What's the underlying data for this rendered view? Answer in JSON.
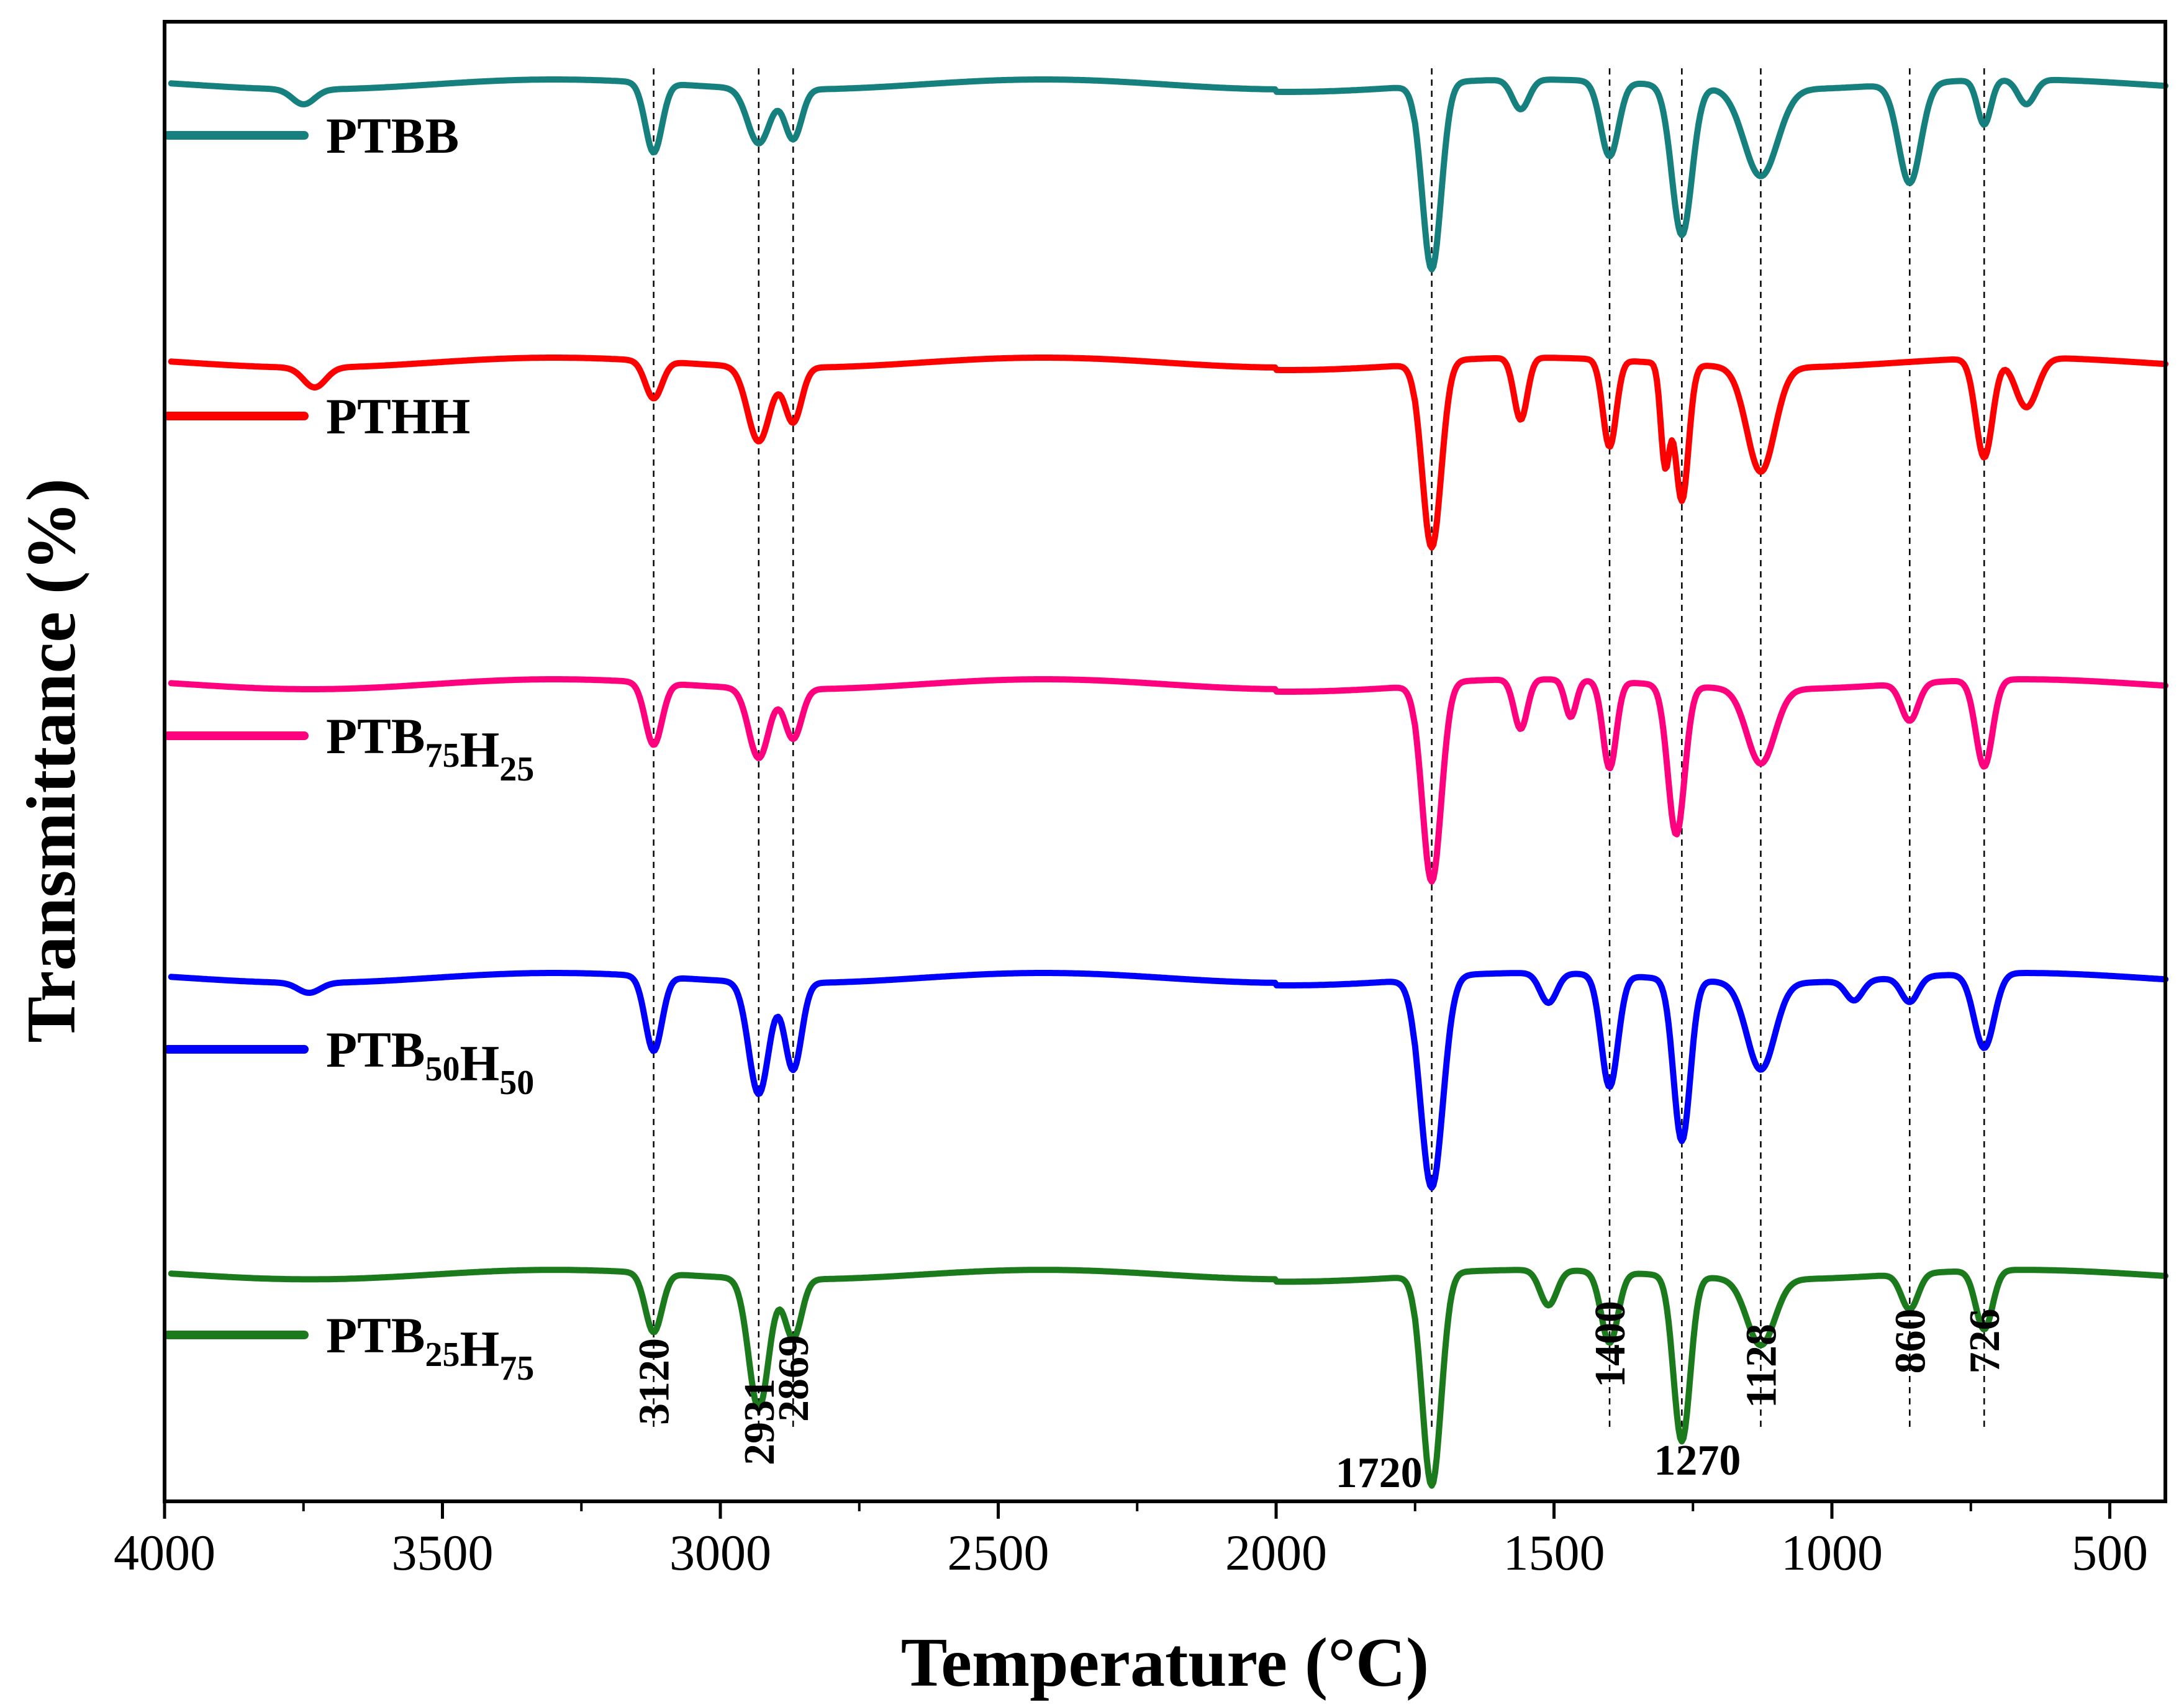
{
  "chart_data": {
    "type": "line",
    "title": "",
    "xlabel": "Temperature (°C)",
    "ylabel": "Transmittance (%)",
    "xlim": [
      4000,
      400
    ],
    "x_ticks": [
      4000,
      3500,
      3000,
      2500,
      2000,
      1500,
      1000,
      500
    ],
    "x_tick_labels": [
      "4000",
      "3500",
      "3000",
      "2500",
      "2000",
      "1500",
      "1000",
      "500"
    ],
    "x_minor_ticks": [
      3750,
      3250,
      2750,
      2250,
      1750,
      1250,
      750
    ],
    "y_ticks_shown": false,
    "grid": false,
    "legend_placement": "left, beside each trace",
    "reference_lines": [
      3120,
      2931,
      2869,
      1720,
      1400,
      1270,
      1128,
      860,
      726
    ],
    "peak_labels": [
      {
        "text": "3120",
        "x": 3120,
        "rotate": true
      },
      {
        "text": "2931",
        "x": 2931,
        "rotate": true
      },
      {
        "text": "2869",
        "x": 2869,
        "rotate": true
      },
      {
        "text": "1720",
        "x": 1720,
        "rotate": false
      },
      {
        "text": "1400",
        "x": 1400,
        "rotate": true
      },
      {
        "text": "1270",
        "x": 1270,
        "rotate": false
      },
      {
        "text": "1128",
        "x": 1128,
        "rotate": true
      },
      {
        "text": "860",
        "x": 860,
        "rotate": true
      },
      {
        "text": "726",
        "x": 726,
        "rotate": true
      }
    ],
    "series": [
      {
        "name": "PTBB",
        "label_main": "PTBB",
        "sub1": "",
        "main2": "",
        "sub2": "",
        "color": "#16807f",
        "baseline": 0.96,
        "peaks": [
          [
            3750,
            0.06,
            20
          ],
          [
            3120,
            0.28,
            15
          ],
          [
            2931,
            0.22,
            20
          ],
          [
            2869,
            0.2,
            15
          ],
          [
            1720,
            0.75,
            17
          ],
          [
            1560,
            0.12,
            15
          ],
          [
            1400,
            0.3,
            16
          ],
          [
            1270,
            0.6,
            18
          ],
          [
            1128,
            0.35,
            30
          ],
          [
            860,
            0.4,
            20
          ],
          [
            726,
            0.18,
            12
          ],
          [
            650,
            0.1,
            15
          ]
        ]
      },
      {
        "name": "PTHH",
        "label_main": "PTHH",
        "sub1": "",
        "main2": "",
        "sub2": "",
        "color": "#ff0000",
        "baseline": 0.96,
        "peaks": [
          [
            3730,
            0.08,
            20
          ],
          [
            3120,
            0.15,
            15
          ],
          [
            2931,
            0.3,
            20
          ],
          [
            2869,
            0.22,
            15
          ],
          [
            1720,
            0.75,
            17
          ],
          [
            1560,
            0.25,
            12
          ],
          [
            1400,
            0.35,
            12
          ],
          [
            1300,
            0.4,
            8
          ],
          [
            1270,
            0.55,
            12
          ],
          [
            1128,
            0.42,
            25
          ],
          [
            726,
            0.4,
            15
          ],
          [
            650,
            0.2,
            20
          ]
        ]
      },
      {
        "name": "PTB75H25",
        "label_main": "PTB",
        "sub1": "75",
        "main2": "H",
        "sub2": "25",
        "color": "#ff007f",
        "baseline": 0.97,
        "peaks": [
          [
            3120,
            0.25,
            15
          ],
          [
            2931,
            0.28,
            18
          ],
          [
            2869,
            0.2,
            15
          ],
          [
            1720,
            0.8,
            17
          ],
          [
            1560,
            0.2,
            12
          ],
          [
            1470,
            0.15,
            10
          ],
          [
            1400,
            0.35,
            12
          ],
          [
            1280,
            0.6,
            15
          ],
          [
            1128,
            0.3,
            25
          ],
          [
            860,
            0.15,
            15
          ],
          [
            726,
            0.35,
            15
          ]
        ]
      },
      {
        "name": "PTB50H50",
        "label_main": "PTB",
        "sub1": "50",
        "main2": "H",
        "sub2": "50",
        "color": "#0000ff",
        "baseline": 0.97,
        "peaks": [
          [
            3740,
            0.04,
            20
          ],
          [
            3120,
            0.3,
            15
          ],
          [
            2931,
            0.45,
            18
          ],
          [
            2869,
            0.35,
            15
          ],
          [
            1720,
            0.85,
            20
          ],
          [
            1510,
            0.12,
            15
          ],
          [
            1400,
            0.45,
            15
          ],
          [
            1270,
            0.65,
            15
          ],
          [
            1128,
            0.35,
            25
          ],
          [
            960,
            0.08,
            15
          ],
          [
            860,
            0.1,
            15
          ],
          [
            726,
            0.3,
            18
          ]
        ]
      },
      {
        "name": "PTB25H75",
        "label_main": "PTB",
        "sub1": "25",
        "main2": "H",
        "sub2": "75",
        "color": "#1b7a1b",
        "baseline": 0.96,
        "peaks": [
          [
            3120,
            0.25,
            15
          ],
          [
            2931,
            0.55,
            18
          ],
          [
            2869,
            0.25,
            15
          ],
          [
            1720,
            0.9,
            17
          ],
          [
            1510,
            0.15,
            15
          ],
          [
            1400,
            0.3,
            15
          ],
          [
            1270,
            0.7,
            15
          ],
          [
            1128,
            0.28,
            25
          ],
          [
            860,
            0.15,
            15
          ],
          [
            726,
            0.25,
            15
          ]
        ]
      }
    ]
  }
}
